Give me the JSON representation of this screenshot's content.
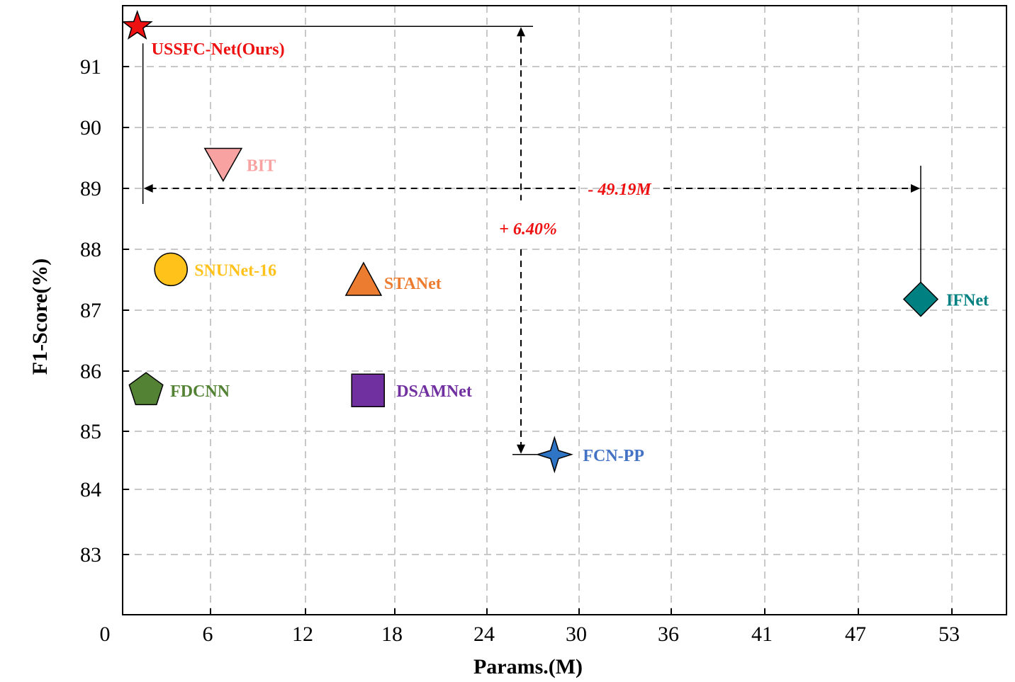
{
  "chart_data": {
    "type": "scatter",
    "title": "",
    "xlabel": "Params.(M)",
    "ylabel": "F1-Score(%)",
    "x_ticks": [
      "0",
      "6",
      "12",
      "18",
      "24",
      "30",
      "36",
      "41",
      "47",
      "53"
    ],
    "y_ticks": [
      "83",
      "84",
      "85",
      "86",
      "87",
      "88",
      "89",
      "90",
      "91"
    ],
    "xlim": [
      0,
      57
    ],
    "ylim": [
      82,
      92
    ],
    "grid": true,
    "points": [
      {
        "name": "USSFC-Net(Ours)",
        "x": 1.0,
        "y": 91.66,
        "marker": "star",
        "color": "#ee1111",
        "label_color": "#ee1111"
      },
      {
        "name": "BIT",
        "x": 6.8,
        "y": 89.39,
        "marker": "triangle-down",
        "color": "#f9a2a2",
        "label_color": "#f9a2a2"
      },
      {
        "name": "SNUNet-16",
        "x": 3.3,
        "y": 87.67,
        "marker": "circle",
        "color": "#ffc21a",
        "label_color": "#ffc21a"
      },
      {
        "name": "STANet",
        "x": 15.9,
        "y": 87.5,
        "marker": "triangle-up",
        "color": "#ec7c30",
        "label_color": "#ec7c30"
      },
      {
        "name": "IFNet",
        "x": 51.0,
        "y": 87.18,
        "marker": "diamond",
        "color": "#008080",
        "label_color": "#008080"
      },
      {
        "name": "FDCNN",
        "x": 1.6,
        "y": 85.68,
        "marker": "pentagon",
        "color": "#548235",
        "label_color": "#548235"
      },
      {
        "name": "DSAMNet",
        "x": 16.2,
        "y": 85.68,
        "marker": "square",
        "color": "#7030a0",
        "label_color": "#7030a0"
      },
      {
        "name": "FCN-PP",
        "x": 28.4,
        "y": 84.6,
        "marker": "star4",
        "color": "#2e75c6",
        "label_color": "#4472c4"
      }
    ],
    "annotations": [
      {
        "text": "- 49.19M",
        "color": "#ee1111"
      },
      {
        "text": "+ 6.40%",
        "color": "#ee1111"
      }
    ]
  }
}
